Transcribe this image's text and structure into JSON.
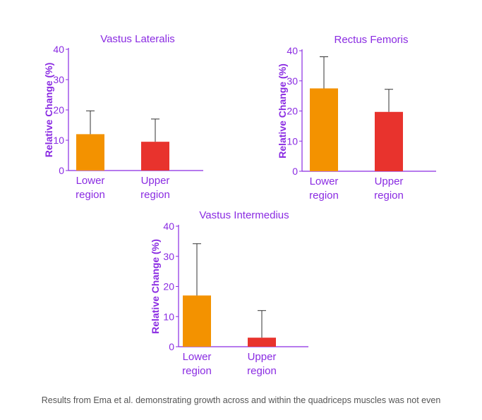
{
  "colors": {
    "accent": "#8a2be2",
    "lower": "#f39200",
    "upper": "#e8332d",
    "error_bar": "#333333"
  },
  "caption": "Results from Ema et al. demonstrating growth across and within the quadriceps muscles was not even",
  "chart_data": [
    {
      "type": "bar",
      "title": "Vastus Lateralis",
      "ylabel": "Relative Change (%)",
      "xlabel": "",
      "ylim": [
        0,
        40
      ],
      "yticks": [
        0,
        10,
        20,
        30,
        40
      ],
      "categories": [
        [
          "Lower",
          "region"
        ],
        [
          "Upper",
          "region"
        ]
      ],
      "values": [
        12,
        9.5
      ],
      "errors": [
        7.7,
        7.5
      ],
      "grid": false
    },
    {
      "type": "bar",
      "title": "Rectus Femoris",
      "ylabel": "Relative Change (%)",
      "xlabel": "",
      "ylim": [
        0,
        40
      ],
      "yticks": [
        0,
        10,
        20,
        30,
        40
      ],
      "categories": [
        [
          "Lower",
          "region"
        ],
        [
          "Upper",
          "region"
        ]
      ],
      "values": [
        27.5,
        19.7
      ],
      "errors": [
        10.5,
        7.5
      ],
      "grid": false
    },
    {
      "type": "bar",
      "title": "Vastus Intermedius",
      "ylabel": "Relative Change (%)",
      "xlabel": "",
      "ylim": [
        0,
        40
      ],
      "yticks": [
        0,
        10,
        20,
        30,
        40
      ],
      "categories": [
        [
          "Lower",
          "region"
        ],
        [
          "Upper",
          "region"
        ]
      ],
      "values": [
        17,
        3
      ],
      "errors": [
        17.2,
        9
      ],
      "grid": false
    }
  ]
}
